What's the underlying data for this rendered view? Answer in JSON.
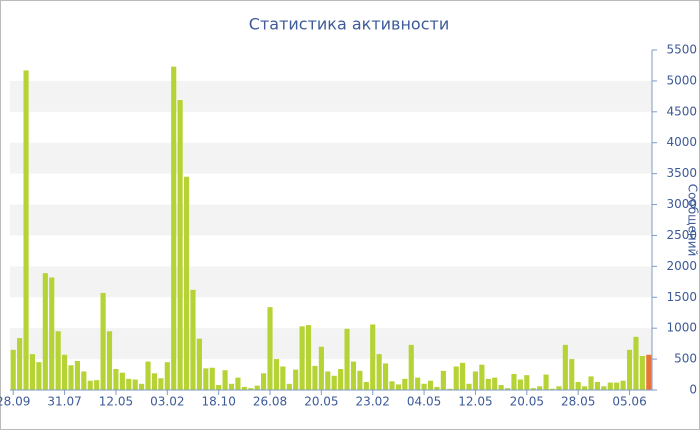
{
  "chart_data": {
    "type": "bar",
    "title": "Статистика активности",
    "y_label": "Сообщений",
    "categories": [
      "28.09",
      null,
      null,
      null,
      null,
      null,
      null,
      null,
      "31.07",
      null,
      null,
      null,
      null,
      null,
      null,
      null,
      "12.05",
      null,
      null,
      null,
      null,
      null,
      null,
      null,
      "03.02",
      null,
      null,
      null,
      null,
      null,
      null,
      null,
      "18.10",
      null,
      null,
      null,
      null,
      null,
      null,
      null,
      "26.08",
      null,
      null,
      null,
      null,
      null,
      null,
      null,
      "20.05",
      null,
      null,
      null,
      null,
      null,
      null,
      null,
      "23.02",
      null,
      null,
      null,
      null,
      null,
      null,
      null,
      "04.05",
      null,
      null,
      null,
      null,
      null,
      null,
      null,
      "12.05",
      null,
      null,
      null,
      null,
      null,
      null,
      null,
      "20.05",
      null,
      null,
      null,
      null,
      null,
      null,
      null,
      "28.05",
      null,
      null,
      null,
      null,
      null,
      null,
      null,
      "05.06",
      null,
      null,
      null
    ],
    "values": [
      650,
      840,
      5170,
      580,
      450,
      1890,
      1820,
      950,
      570,
      400,
      470,
      300,
      150,
      160,
      1570,
      950,
      340,
      280,
      180,
      170,
      100,
      460,
      270,
      190,
      450,
      5230,
      4690,
      3450,
      1620,
      830,
      350,
      360,
      80,
      320,
      100,
      200,
      50,
      30,
      70,
      270,
      1340,
      500,
      380,
      100,
      330,
      1030,
      1050,
      390,
      700,
      300,
      230,
      340,
      990,
      460,
      310,
      130,
      1060,
      580,
      430,
      140,
      90,
      180,
      730,
      200,
      100,
      150,
      50,
      310,
      20,
      380,
      440,
      100,
      300,
      410,
      180,
      200,
      80,
      30,
      260,
      170,
      240,
      30,
      60,
      250,
      20,
      60,
      730,
      500,
      130,
      60,
      220,
      130,
      60,
      120,
      120,
      150,
      650,
      860,
      550,
      570
    ],
    "color": "#b5d334",
    "highlight_last_color": "#e8743b",
    "ylim": [
      0,
      5500
    ],
    "yticks": [
      0,
      500,
      1000,
      1500,
      2000,
      2500,
      3000,
      3500,
      4000,
      4500,
      5000,
      5500
    ],
    "grid": "bands",
    "y_axis_side": "right"
  }
}
